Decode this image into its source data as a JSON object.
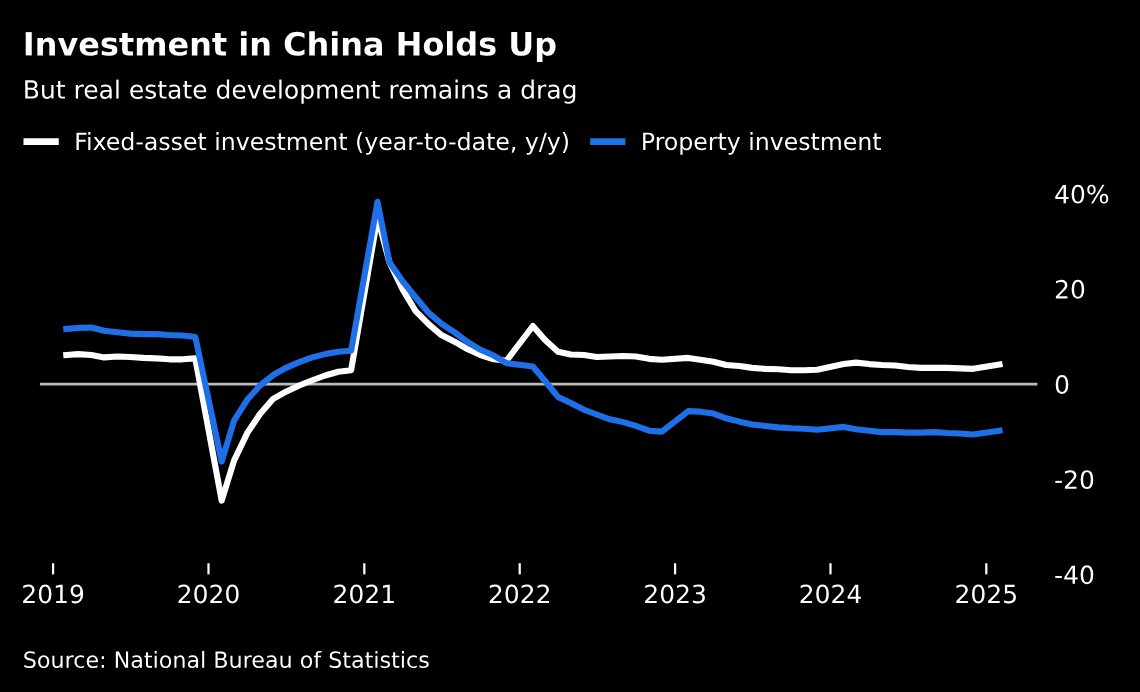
{
  "chart_data": {
    "type": "line",
    "title": "Investment in China Holds Up",
    "subtitle": "But real estate development remains a drag",
    "x": [
      "2019-02",
      "2019-03",
      "2019-04",
      "2019-05",
      "2019-06",
      "2019-07",
      "2019-08",
      "2019-09",
      "2019-10",
      "2019-11",
      "2019-12",
      "2020-02",
      "2020-03",
      "2020-04",
      "2020-05",
      "2020-06",
      "2020-07",
      "2020-08",
      "2020-09",
      "2020-10",
      "2020-11",
      "2020-12",
      "2021-02",
      "2021-03",
      "2021-04",
      "2021-05",
      "2021-06",
      "2021-07",
      "2021-08",
      "2021-09",
      "2021-10",
      "2021-11",
      "2021-12",
      "2022-02",
      "2022-03",
      "2022-04",
      "2022-05",
      "2022-06",
      "2022-07",
      "2022-08",
      "2022-09",
      "2022-10",
      "2022-11",
      "2022-12",
      "2023-02",
      "2023-03",
      "2023-04",
      "2023-05",
      "2023-06",
      "2023-07",
      "2023-08",
      "2023-09",
      "2023-10",
      "2023-11",
      "2023-12",
      "2024-02",
      "2024-03",
      "2024-04",
      "2024-05",
      "2024-06",
      "2024-07",
      "2024-08",
      "2024-09",
      "2024-10",
      "2024-11",
      "2024-12",
      "2025-02"
    ],
    "series": [
      {
        "name": "Fixed-asset investment (year-to-date, y/y)",
        "color": "#ffffff",
        "values": [
          6.1,
          6.3,
          6.1,
          5.6,
          5.8,
          5.7,
          5.5,
          5.4,
          5.2,
          5.2,
          5.4,
          -24.5,
          -16.1,
          -10.3,
          -6.3,
          -3.1,
          -1.6,
          -0.3,
          0.8,
          1.8,
          2.6,
          2.9,
          35.0,
          25.6,
          19.9,
          15.4,
          12.6,
          10.3,
          8.9,
          7.3,
          6.1,
          5.2,
          4.9,
          12.2,
          9.3,
          6.8,
          6.2,
          6.1,
          5.7,
          5.8,
          5.9,
          5.8,
          5.3,
          5.1,
          5.5,
          5.1,
          4.7,
          4.0,
          3.8,
          3.4,
          3.2,
          3.1,
          2.9,
          2.9,
          3.0,
          4.2,
          4.5,
          4.2,
          4.0,
          3.9,
          3.6,
          3.4,
          3.4,
          3.4,
          3.3,
          3.2,
          4.1
        ]
      },
      {
        "name": "Property investment",
        "color": "#1f6fe8",
        "values": [
          11.6,
          11.8,
          11.9,
          11.2,
          10.9,
          10.6,
          10.5,
          10.5,
          10.3,
          10.2,
          9.9,
          -16.3,
          -7.7,
          -3.3,
          -0.3,
          1.9,
          3.4,
          4.6,
          5.6,
          6.3,
          6.8,
          7.0,
          38.3,
          25.6,
          21.6,
          18.3,
          15.0,
          12.7,
          10.9,
          8.8,
          7.2,
          6.0,
          4.4,
          3.7,
          0.7,
          -2.7,
          -4.0,
          -5.4,
          -6.4,
          -7.4,
          -8.0,
          -8.8,
          -9.8,
          -10.0,
          -5.7,
          -5.8,
          -6.2,
          -7.2,
          -7.9,
          -8.5,
          -8.8,
          -9.1,
          -9.3,
          -9.4,
          -9.6,
          -9.0,
          -9.5,
          -9.8,
          -10.1,
          -10.1,
          -10.2,
          -10.2,
          -10.1,
          -10.3,
          -10.4,
          -10.6,
          -9.8
        ]
      }
    ],
    "xlim": [
      "2018-12",
      "2025-05"
    ],
    "xticks": [
      {
        "value": "2019",
        "label": "2019"
      },
      {
        "value": "2020",
        "label": "2020"
      },
      {
        "value": "2021",
        "label": "2021"
      },
      {
        "value": "2022",
        "label": "2022"
      },
      {
        "value": "2023",
        "label": "2023"
      },
      {
        "value": "2024",
        "label": "2024"
      },
      {
        "value": "2025",
        "label": "2025"
      }
    ],
    "ylim": [
      -40,
      40
    ],
    "yticks": [
      -40,
      -20,
      0,
      20,
      {
        "value": 40,
        "label": "40%"
      }
    ],
    "ref_lines": [
      {
        "axis": "y",
        "value": 0,
        "color": "#bbbbbb"
      }
    ],
    "grid": false,
    "legend": "top left",
    "marker": "none",
    "line_style": "solid",
    "annotations": [
      "Source: National Bureau of Statistics"
    ]
  }
}
